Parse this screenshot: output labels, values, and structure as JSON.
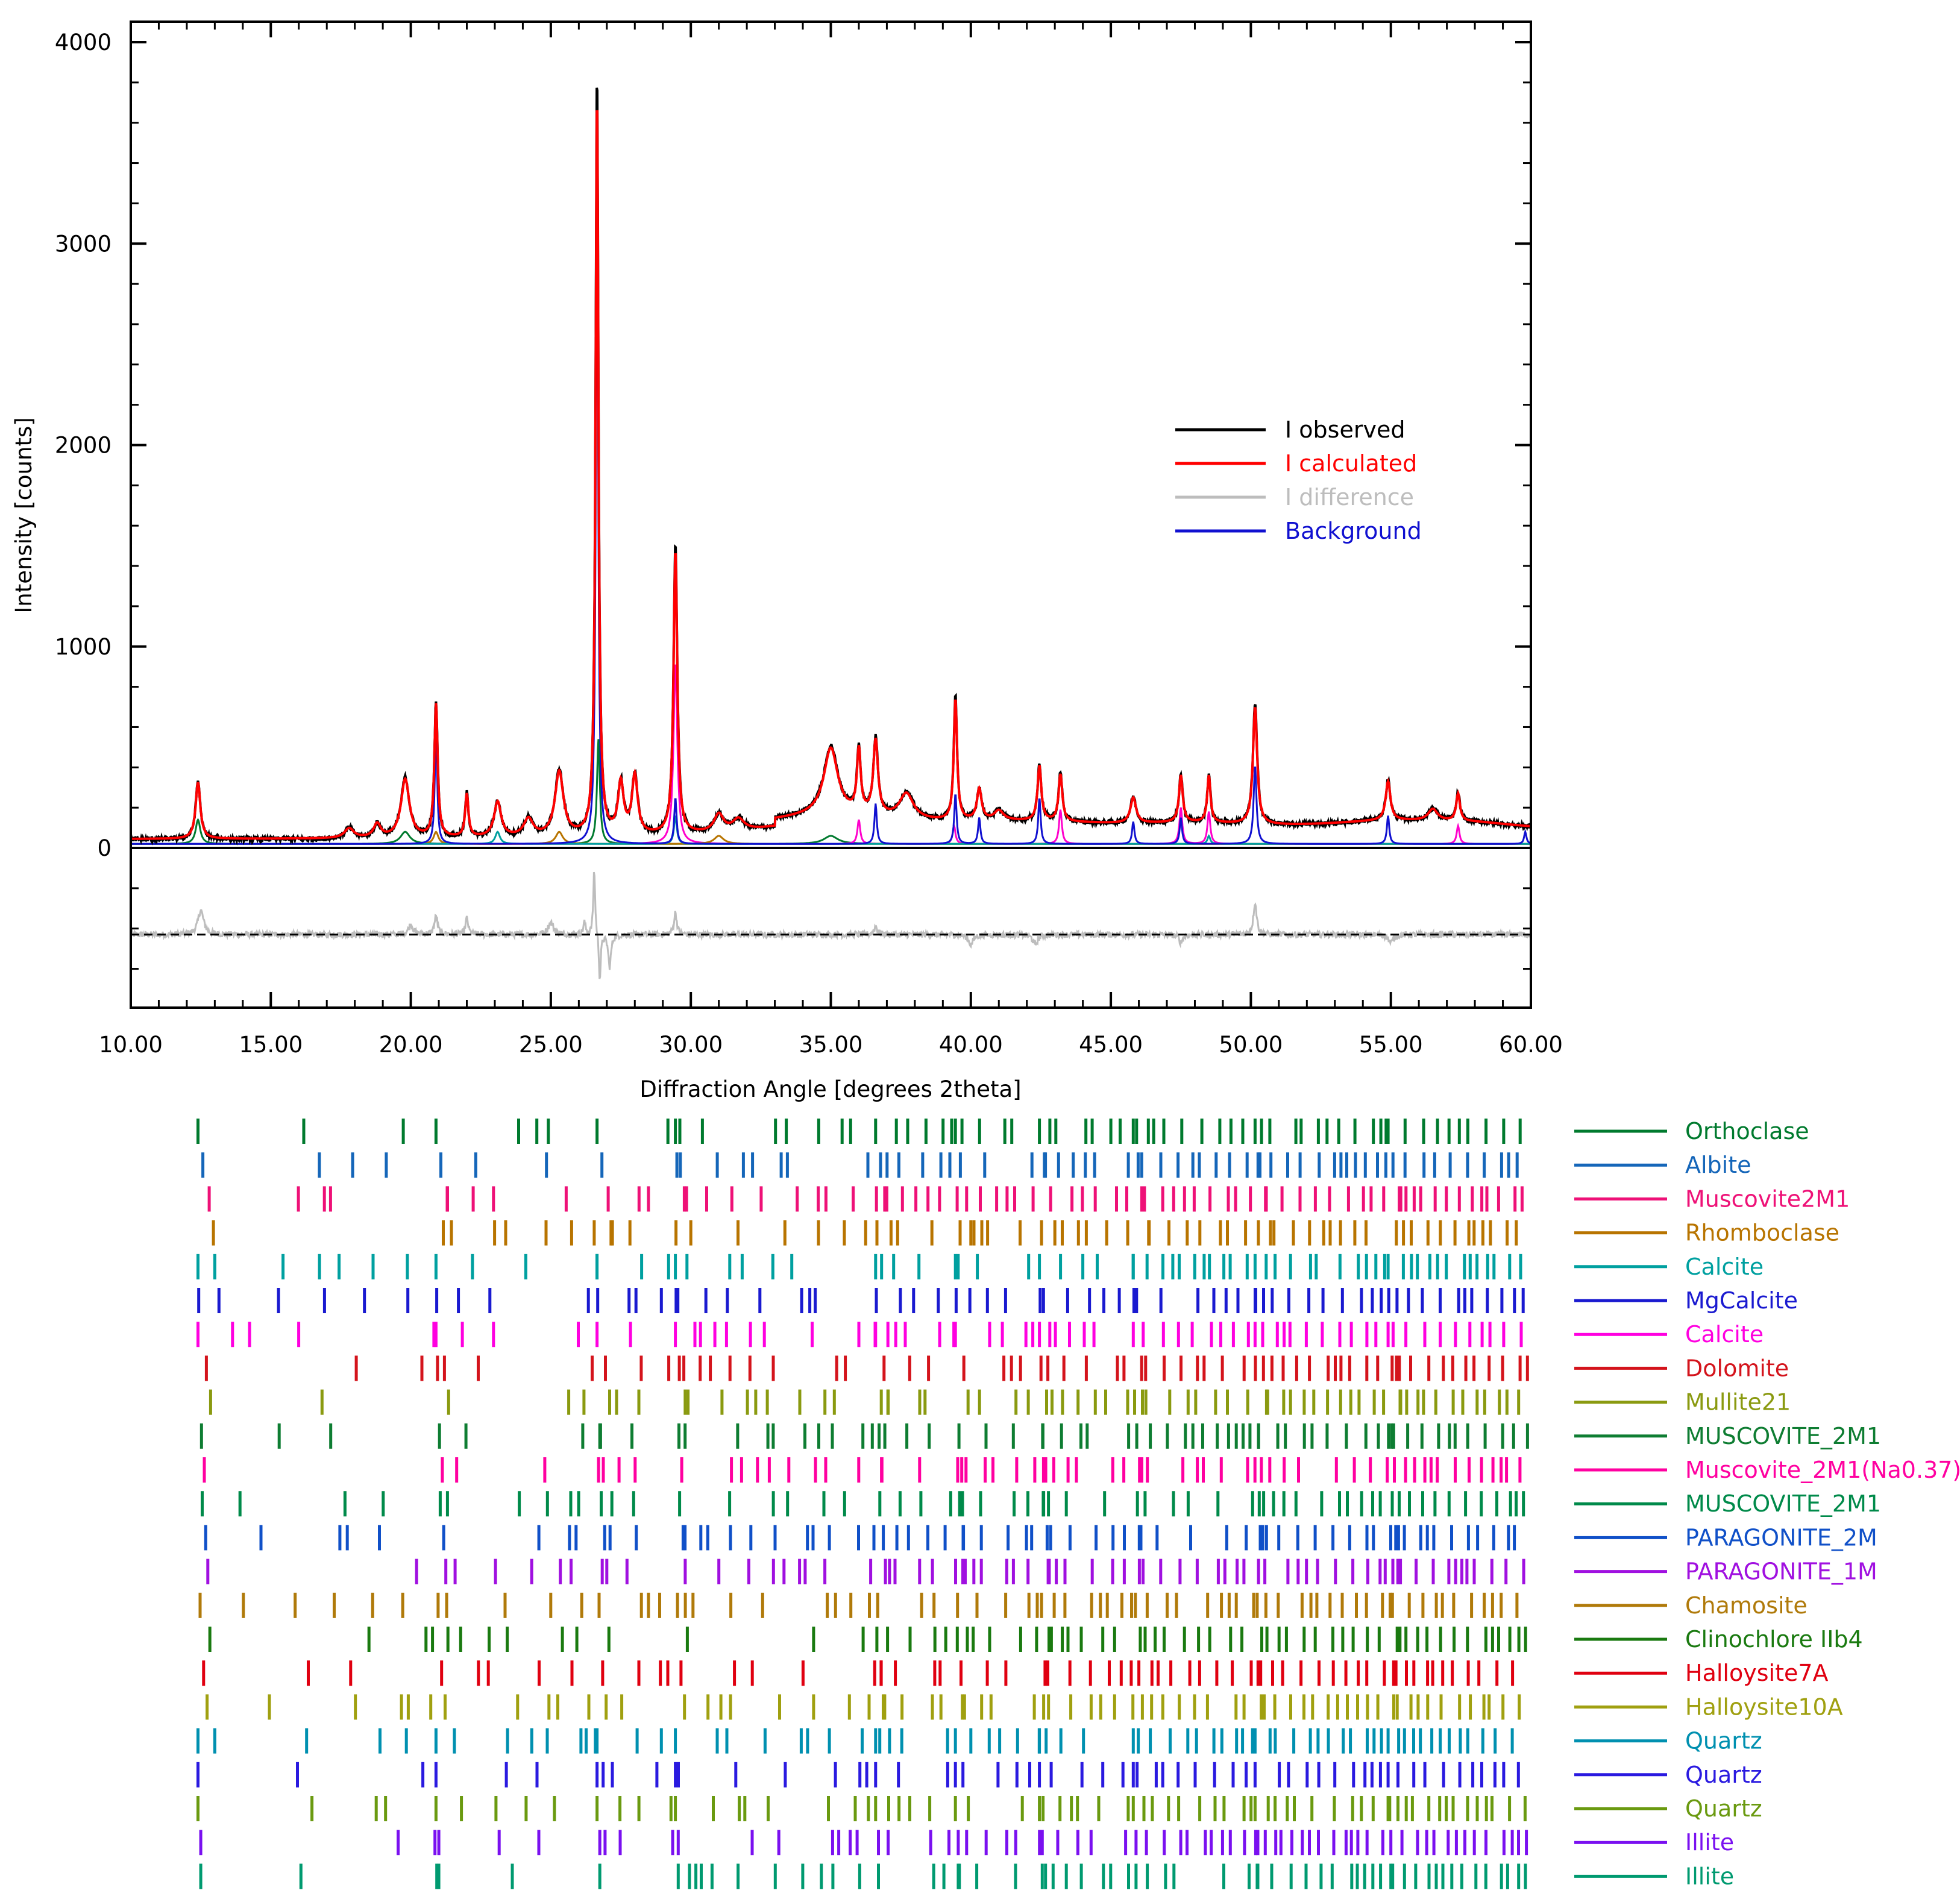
{
  "chart_data": {
    "type": "line",
    "xlabel": "Diffraction Angle [degrees 2theta]",
    "ylabel": "Intensity [counts]",
    "xlim": [
      10,
      60
    ],
    "ylim": [
      -800,
      4000
    ],
    "xticks": [
      "10.00",
      "15.00",
      "20.00",
      "25.00",
      "30.00",
      "35.00",
      "40.00",
      "45.00",
      "50.00",
      "55.00",
      "60.00"
    ],
    "yticks": [
      "0",
      "1000",
      "2000",
      "3000",
      "4000"
    ],
    "legend": [
      {
        "label": "I observed",
        "color": "#000000"
      },
      {
        "label": "I calculated",
        "color": "#ff0000"
      },
      {
        "label": "I difference",
        "color": "#bdbdbd"
      },
      {
        "label": "Background",
        "color": "#1010d0"
      }
    ],
    "background_level": 40,
    "observed_peaks": [
      [
        12.4,
        290,
        0.1
      ],
      [
        17.8,
        50,
        0.2
      ],
      [
        18.8,
        70,
        0.15
      ],
      [
        19.8,
        300,
        0.18
      ],
      [
        20.9,
        680,
        0.07
      ],
      [
        22.0,
        220,
        0.07
      ],
      [
        23.1,
        180,
        0.15
      ],
      [
        24.2,
        90,
        0.2
      ],
      [
        25.3,
        330,
        0.18
      ],
      [
        26.65,
        3800,
        0.06
      ],
      [
        27.5,
        260,
        0.12
      ],
      [
        28.0,
        300,
        0.12
      ],
      [
        29.45,
        1450,
        0.08
      ],
      [
        31.0,
        90,
        0.2
      ],
      [
        31.7,
        60,
        0.25
      ],
      [
        35.0,
        340,
        0.3
      ],
      [
        36.0,
        320,
        0.08
      ],
      [
        36.6,
        380,
        0.1
      ],
      [
        37.7,
        130,
        0.3
      ],
      [
        39.45,
        620,
        0.07
      ],
      [
        40.3,
        160,
        0.1
      ],
      [
        41.0,
        50,
        0.2
      ],
      [
        42.45,
        280,
        0.08
      ],
      [
        43.2,
        240,
        0.08
      ],
      [
        45.8,
        130,
        0.12
      ],
      [
        47.5,
        240,
        0.08
      ],
      [
        48.5,
        240,
        0.07
      ],
      [
        50.15,
        600,
        0.09
      ],
      [
        54.9,
        200,
        0.1
      ],
      [
        56.5,
        60,
        0.2
      ],
      [
        57.4,
        140,
        0.08
      ]
    ],
    "observed_broad": [
      [
        35,
        120,
        3.0
      ],
      [
        42,
        60,
        4.0
      ],
      [
        48,
        40,
        2.5
      ],
      [
        55,
        70,
        3.0
      ],
      [
        58,
        40,
        2.0
      ]
    ],
    "background_peaks": [
      [
        20.9,
        580,
        0.05
      ],
      [
        26.65,
        3200,
        0.05
      ],
      [
        29.45,
        230,
        0.05
      ],
      [
        36.6,
        200,
        0.05
      ],
      [
        39.45,
        250,
        0.05
      ],
      [
        40.3,
        130,
        0.05
      ],
      [
        42.45,
        230,
        0.05
      ],
      [
        45.8,
        110,
        0.05
      ],
      [
        47.5,
        130,
        0.05
      ],
      [
        50.15,
        390,
        0.06
      ],
      [
        54.9,
        140,
        0.05
      ],
      [
        59.8,
        60,
        0.05
      ]
    ],
    "component_peaks": [
      {
        "color": "#007a2e",
        "peaks": [
          [
            12.4,
            120,
            0.1
          ],
          [
            26.7,
            520,
            0.06
          ],
          [
            19.8,
            60,
            0.2
          ],
          [
            35,
            40,
            0.3
          ]
        ]
      },
      {
        "color": "#ff00cc",
        "peaks": [
          [
            29.45,
            900,
            0.08
          ],
          [
            36.0,
            120,
            0.06
          ],
          [
            39.4,
            90,
            0.06
          ],
          [
            43.2,
            170,
            0.06
          ],
          [
            47.5,
            180,
            0.06
          ],
          [
            48.5,
            160,
            0.06
          ],
          [
            57.4,
            90,
            0.06
          ]
        ]
      },
      {
        "color": "#b87400",
        "peaks": [
          [
            20.9,
            60,
            0.1
          ],
          [
            25.3,
            60,
            0.15
          ],
          [
            31.0,
            40,
            0.2
          ]
        ]
      },
      {
        "color": "#00a0a0",
        "peaks": [
          [
            29.45,
            140,
            0.06
          ],
          [
            23.1,
            60,
            0.1
          ],
          [
            48.5,
            40,
            0.06
          ]
        ]
      }
    ],
    "difference": {
      "offset": -430,
      "spikes": [
        [
          12.5,
          120,
          0.12
        ],
        [
          20.0,
          50,
          0.1
        ],
        [
          20.9,
          90,
          0.07
        ],
        [
          22.0,
          80,
          0.06
        ],
        [
          25.0,
          60,
          0.12
        ],
        [
          26.2,
          60,
          0.05
        ],
        [
          26.55,
          330,
          0.04
        ],
        [
          26.75,
          -230,
          0.04
        ],
        [
          27.1,
          -160,
          0.06
        ],
        [
          29.45,
          110,
          0.06
        ],
        [
          36.6,
          40,
          0.08
        ],
        [
          40.0,
          -50,
          0.1
        ],
        [
          42.3,
          -50,
          0.1
        ],
        [
          47.5,
          -40,
          0.08
        ],
        [
          50.15,
          160,
          0.07
        ],
        [
          55.0,
          -40,
          0.1
        ]
      ]
    },
    "phases": [
      {
        "name": "Orthoclase",
        "color": "#007a2e",
        "offset": 0.0
      },
      {
        "name": "Albite",
        "color": "#1566b9",
        "offset": 0.35
      },
      {
        "name": "Muscovite2M1",
        "color": "#ee1177",
        "offset": 0.8
      },
      {
        "name": "Rhomboclase",
        "color": "#b87400",
        "offset": 1.1
      },
      {
        "name": "Calcite",
        "color": "#00a0a0",
        "offset": 0.0
      },
      {
        "name": "MgCalcite",
        "color": "#1a1ad0",
        "offset": 0.05
      },
      {
        "name": "Calcite",
        "color": "#ff00e0",
        "offset": 0.0
      },
      {
        "name": "Dolomite",
        "color": "#d4141c",
        "offset": 0.6
      },
      {
        "name": "Mullite21",
        "color": "#8a9a10",
        "offset": 0.9
      },
      {
        "name": "MUSCOVITE_2M1",
        "color": "#0e7d32",
        "offset": 0.25
      },
      {
        "name": "Muscovite_2M1(Na0.37)",
        "color": "#ff00a0",
        "offset": 0.45
      },
      {
        "name": "MUSCOVITE_2M1",
        "color": "#008a4a",
        "offset": 0.3
      },
      {
        "name": "PARAGONITE_2M",
        "color": "#1050c8",
        "offset": 0.55
      },
      {
        "name": "PARAGONITE_1M",
        "color": "#a010e0",
        "offset": 0.7
      },
      {
        "name": "Chamosite",
        "color": "#b07a0a",
        "offset": 0.15
      },
      {
        "name": "Clinochlore IIb4",
        "color": "#1a7a10",
        "offset": 0.85
      },
      {
        "name": "Halloysite7A",
        "color": "#e00010",
        "offset": 0.4
      },
      {
        "name": "Halloysite10A",
        "color": "#a0a010",
        "offset": 0.65
      },
      {
        "name": "Quartz",
        "color": "#0090b0",
        "offset": 0.0
      },
      {
        "name": "Quartz",
        "color": "#2a1ae0",
        "offset": 0.0
      },
      {
        "name": "Quartz",
        "color": "#6a9a10",
        "offset": 0.0
      },
      {
        "name": "Illite",
        "color": "#7a10f0",
        "offset": 0.2
      },
      {
        "name": "Illite",
        "color": "#009a70",
        "offset": 0.2
      }
    ]
  }
}
